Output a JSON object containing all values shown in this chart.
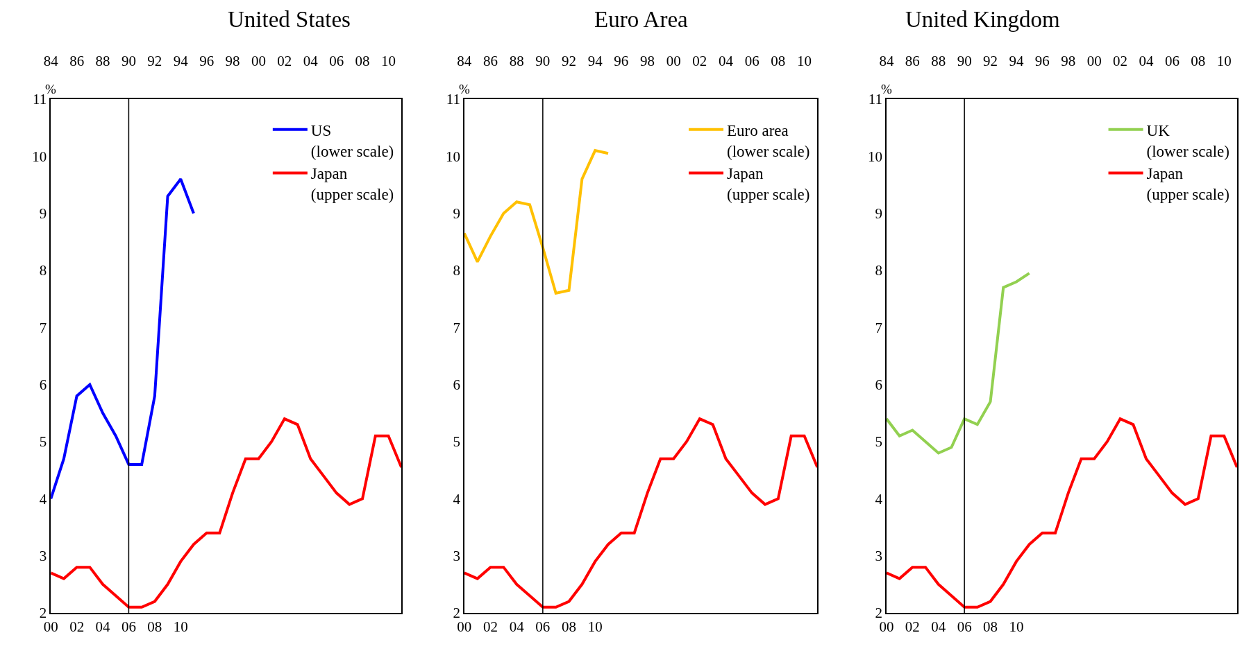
{
  "chart_data": [
    {
      "type": "line",
      "title": "United States",
      "ylabel": "%",
      "legend": "top right",
      "line_style": "solid",
      "marker": "none",
      "xlim": [
        2000,
        2027
      ],
      "xticks": [
        {
          "value": 2000,
          "label": "00"
        },
        {
          "value": 2002,
          "label": "02"
        },
        {
          "value": 2004,
          "label": "04"
        },
        {
          "value": 2006,
          "label": "06"
        },
        {
          "value": 2008,
          "label": "08"
        },
        {
          "value": 2010,
          "label": "10"
        }
      ],
      "x2lim": [
        1984,
        2011
      ],
      "x2ticks": [
        {
          "value": 1984,
          "label": "84"
        },
        {
          "value": 1986,
          "label": "86"
        },
        {
          "value": 1988,
          "label": "88"
        },
        {
          "value": 1990,
          "label": "90"
        },
        {
          "value": 1992,
          "label": "92"
        },
        {
          "value": 1994,
          "label": "94"
        },
        {
          "value": 1996,
          "label": "96"
        },
        {
          "value": 1998,
          "label": "98"
        },
        {
          "value": 2000,
          "label": "00"
        },
        {
          "value": 2002,
          "label": "02"
        },
        {
          "value": 2004,
          "label": "04"
        },
        {
          "value": 2006,
          "label": "06"
        },
        {
          "value": 2008,
          "label": "08"
        },
        {
          "value": 2010,
          "label": "10"
        }
      ],
      "ylim": [
        2,
        11
      ],
      "yticks": [
        2,
        3,
        4,
        5,
        6,
        7,
        8,
        9,
        10,
        11
      ],
      "ref_lines": [
        {
          "axis": "x",
          "value": 2006,
          "color": "#000000"
        }
      ],
      "series": [
        {
          "name": "US\n(lower scale)",
          "color": "#0000ff",
          "x": [
            2000,
            2001,
            2002,
            2003,
            2004,
            2005,
            2006,
            2007,
            2008,
            2009,
            2010,
            2011
          ],
          "values": [
            4.0,
            4.7,
            5.8,
            6.0,
            5.5,
            5.1,
            4.6,
            4.6,
            5.8,
            9.3,
            9.6,
            9.0
          ]
        },
        {
          "name": "Japan\n(upper scale)",
          "color": "#ff0000",
          "axis": "x2",
          "x": [
            1984,
            1985,
            1986,
            1987,
            1988,
            1989,
            1990,
            1991,
            1992,
            1993,
            1994,
            1995,
            1996,
            1997,
            1998,
            1999,
            2000,
            2001,
            2002,
            2003,
            2004,
            2005,
            2006,
            2007,
            2008,
            2009,
            2010,
            2011
          ],
          "values": [
            2.7,
            2.6,
            2.8,
            2.8,
            2.5,
            2.3,
            2.1,
            2.1,
            2.2,
            2.5,
            2.9,
            3.2,
            3.4,
            3.4,
            4.1,
            4.7,
            4.7,
            5.0,
            5.4,
            5.3,
            4.7,
            4.4,
            4.1,
            3.9,
            4.0,
            5.1,
            5.1,
            4.55
          ]
        }
      ]
    },
    {
      "type": "line",
      "title": "Euro Area",
      "ylabel": "%",
      "legend": "top right",
      "line_style": "solid",
      "marker": "none",
      "xlim": [
        2000,
        2027
      ],
      "xticks": [
        {
          "value": 2000,
          "label": "00"
        },
        {
          "value": 2002,
          "label": "02"
        },
        {
          "value": 2004,
          "label": "04"
        },
        {
          "value": 2006,
          "label": "06"
        },
        {
          "value": 2008,
          "label": "08"
        },
        {
          "value": 2010,
          "label": "10"
        }
      ],
      "x2lim": [
        1984,
        2011
      ],
      "x2ticks": [
        {
          "value": 1984,
          "label": "84"
        },
        {
          "value": 1986,
          "label": "86"
        },
        {
          "value": 1988,
          "label": "88"
        },
        {
          "value": 1990,
          "label": "90"
        },
        {
          "value": 1992,
          "label": "92"
        },
        {
          "value": 1994,
          "label": "94"
        },
        {
          "value": 1996,
          "label": "96"
        },
        {
          "value": 1998,
          "label": "98"
        },
        {
          "value": 2000,
          "label": "00"
        },
        {
          "value": 2002,
          "label": "02"
        },
        {
          "value": 2004,
          "label": "04"
        },
        {
          "value": 2006,
          "label": "06"
        },
        {
          "value": 2008,
          "label": "08"
        },
        {
          "value": 2010,
          "label": "10"
        }
      ],
      "ylim": [
        2,
        11
      ],
      "yticks": [
        2,
        3,
        4,
        5,
        6,
        7,
        8,
        9,
        10,
        11
      ],
      "ref_lines": [
        {
          "axis": "x",
          "value": 2006,
          "color": "#000000"
        }
      ],
      "series": [
        {
          "name": "Euro area\n(lower scale)",
          "color": "#ffc000",
          "x": [
            2000,
            2001,
            2002,
            2003,
            2004,
            2005,
            2006,
            2007,
            2008,
            2009,
            2010,
            2011
          ],
          "values": [
            8.65,
            8.15,
            8.6,
            9.0,
            9.2,
            9.15,
            8.4,
            7.6,
            7.65,
            9.6,
            10.1,
            10.05
          ]
        },
        {
          "name": "Japan\n(upper scale)",
          "color": "#ff0000",
          "axis": "x2",
          "x": [
            1984,
            1985,
            1986,
            1987,
            1988,
            1989,
            1990,
            1991,
            1992,
            1993,
            1994,
            1995,
            1996,
            1997,
            1998,
            1999,
            2000,
            2001,
            2002,
            2003,
            2004,
            2005,
            2006,
            2007,
            2008,
            2009,
            2010,
            2011
          ],
          "values": [
            2.7,
            2.6,
            2.8,
            2.8,
            2.5,
            2.3,
            2.1,
            2.1,
            2.2,
            2.5,
            2.9,
            3.2,
            3.4,
            3.4,
            4.1,
            4.7,
            4.7,
            5.0,
            5.4,
            5.3,
            4.7,
            4.4,
            4.1,
            3.9,
            4.0,
            5.1,
            5.1,
            4.55
          ]
        }
      ]
    },
    {
      "type": "line",
      "title": "United Kingdom",
      "ylabel": "%",
      "legend": "top right",
      "line_style": "solid",
      "marker": "none",
      "xlim": [
        2000,
        2027
      ],
      "xticks": [
        {
          "value": 2000,
          "label": "00"
        },
        {
          "value": 2002,
          "label": "02"
        },
        {
          "value": 2004,
          "label": "04"
        },
        {
          "value": 2006,
          "label": "06"
        },
        {
          "value": 2008,
          "label": "08"
        },
        {
          "value": 2010,
          "label": "10"
        }
      ],
      "x2lim": [
        1984,
        2011
      ],
      "x2ticks": [
        {
          "value": 1984,
          "label": "84"
        },
        {
          "value": 1986,
          "label": "86"
        },
        {
          "value": 1988,
          "label": "88"
        },
        {
          "value": 1990,
          "label": "90"
        },
        {
          "value": 1992,
          "label": "92"
        },
        {
          "value": 1994,
          "label": "94"
        },
        {
          "value": 1996,
          "label": "96"
        },
        {
          "value": 1998,
          "label": "98"
        },
        {
          "value": 2000,
          "label": "00"
        },
        {
          "value": 2002,
          "label": "02"
        },
        {
          "value": 2004,
          "label": "04"
        },
        {
          "value": 2006,
          "label": "06"
        },
        {
          "value": 2008,
          "label": "08"
        },
        {
          "value": 2010,
          "label": "10"
        }
      ],
      "ylim": [
        2,
        11
      ],
      "yticks": [
        2,
        3,
        4,
        5,
        6,
        7,
        8,
        9,
        10,
        11
      ],
      "ref_lines": [
        {
          "axis": "x",
          "value": 2006,
          "color": "#000000"
        }
      ],
      "series": [
        {
          "name": "UK\n(lower scale)",
          "color": "#92d050",
          "x": [
            2000,
            2001,
            2002,
            2003,
            2004,
            2005,
            2006,
            2007,
            2008,
            2009,
            2010,
            2011
          ],
          "values": [
            5.4,
            5.1,
            5.2,
            5.0,
            4.8,
            4.9,
            5.4,
            5.3,
            5.7,
            7.7,
            7.8,
            7.95
          ]
        },
        {
          "name": "Japan\n(upper scale)",
          "color": "#ff0000",
          "axis": "x2",
          "x": [
            1984,
            1985,
            1986,
            1987,
            1988,
            1989,
            1990,
            1991,
            1992,
            1993,
            1994,
            1995,
            1996,
            1997,
            1998,
            1999,
            2000,
            2001,
            2002,
            2003,
            2004,
            2005,
            2006,
            2007,
            2008,
            2009,
            2010,
            2011
          ],
          "values": [
            2.7,
            2.6,
            2.8,
            2.8,
            2.5,
            2.3,
            2.1,
            2.1,
            2.2,
            2.5,
            2.9,
            3.2,
            3.4,
            3.4,
            4.1,
            4.7,
            4.7,
            5.0,
            5.4,
            5.3,
            4.7,
            4.4,
            4.1,
            3.9,
            4.0,
            5.1,
            5.1,
            4.55
          ]
        }
      ]
    }
  ]
}
